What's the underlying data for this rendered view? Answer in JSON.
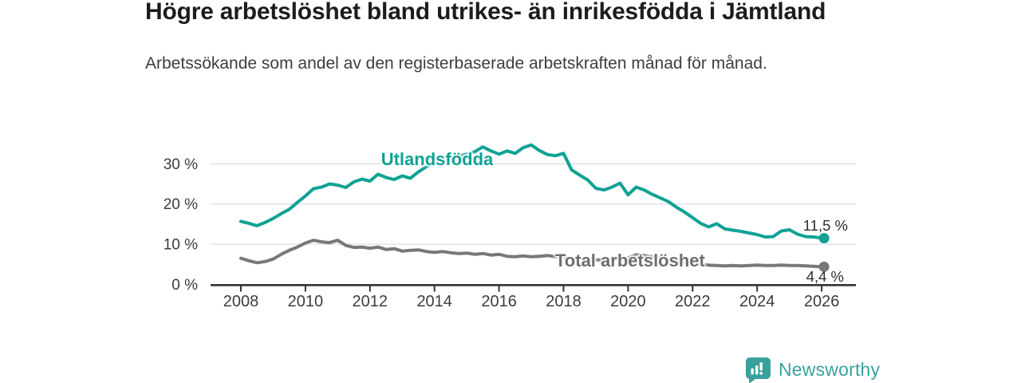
{
  "header": {
    "title": "Högre arbetslöshet bland utrikes- än inrikesfödda i Jämtland",
    "subtitle": "Arbetssökande som andel av den registerbaserade arbetskraften månad för månad."
  },
  "chart_data": {
    "type": "line",
    "title": "Högre arbetslöshet bland utrikes- än inrikesfödda i Jämtland",
    "subtitle": "Arbetssökande som andel av den registerbaserade arbetskraften månad för månad.",
    "xlabel": "",
    "ylabel": "",
    "x_unit": "year (quarterly samples)",
    "x_start": 2008,
    "x_step": 0.25,
    "xlim": [
      2007.1,
      2027.1
    ],
    "ylim": [
      0,
      36
    ],
    "grid": "horizontal",
    "legend_position": "inline-labels",
    "y_ticks": [
      {
        "value": 0,
        "label": "0 %"
      },
      {
        "value": 10,
        "label": "10 %"
      },
      {
        "value": 20,
        "label": "20 %"
      },
      {
        "value": 30,
        "label": "30 %"
      }
    ],
    "x_ticks": [
      {
        "value": 2008,
        "label": "2008"
      },
      {
        "value": 2010,
        "label": "2010"
      },
      {
        "value": 2012,
        "label": "2012"
      },
      {
        "value": 2014,
        "label": "2014"
      },
      {
        "value": 2016,
        "label": "2016"
      },
      {
        "value": 2018,
        "label": "2018"
      },
      {
        "value": 2020,
        "label": "2020"
      },
      {
        "value": 2022,
        "label": "2022"
      },
      {
        "value": 2024,
        "label": "2024"
      },
      {
        "value": 2026,
        "label": "2026"
      }
    ],
    "series": [
      {
        "name": "Utlandsfödda",
        "color": "#0fa295",
        "end_label": "11,5 %",
        "end_value": 11.5,
        "values": [
          15.7,
          15.2,
          14.6,
          15.4,
          16.4,
          17.6,
          18.7,
          20.4,
          22.0,
          23.8,
          24.2,
          25.0,
          24.7,
          24.1,
          25.5,
          26.2,
          25.7,
          27.4,
          26.6,
          26.1,
          27.0,
          26.4,
          28.0,
          29.3,
          30.1,
          30.7,
          31.3,
          31.9,
          32.4,
          33.0,
          34.2,
          33.2,
          32.4,
          33.2,
          32.6,
          34.0,
          34.7,
          33.3,
          32.3,
          32.0,
          32.6,
          28.5,
          27.2,
          26.0,
          23.9,
          23.5,
          24.2,
          25.2,
          22.3,
          24.2,
          23.5,
          22.4,
          21.5,
          20.6,
          19.2,
          18.0,
          16.6,
          15.2,
          14.3,
          15.1,
          13.8,
          13.5,
          13.2,
          12.8,
          12.4,
          11.8,
          11.9,
          13.3,
          13.6,
          12.5,
          11.9,
          11.8,
          11.5
        ]
      },
      {
        "name": "Total arbetslöshet",
        "color": "#77787c",
        "end_label": "4,4 %",
        "end_value": 4.4,
        "values": [
          6.5,
          5.9,
          5.4,
          5.7,
          6.3,
          7.5,
          8.5,
          9.3,
          10.3,
          11.0,
          10.6,
          10.4,
          11.0,
          9.7,
          9.2,
          9.3,
          9.0,
          9.3,
          8.7,
          8.9,
          8.3,
          8.5,
          8.6,
          8.2,
          8.0,
          8.2,
          7.9,
          7.7,
          7.8,
          7.5,
          7.7,
          7.3,
          7.5,
          7.0,
          6.9,
          7.1,
          6.9,
          7.0,
          7.2,
          6.9,
          6.7,
          6.5,
          6.4,
          6.2,
          6.1,
          6.1,
          6.2,
          6.3,
          6.6,
          7.4,
          7.2,
          6.9,
          6.6,
          6.3,
          5.9,
          5.5,
          5.2,
          5.0,
          4.8,
          4.7,
          4.6,
          4.7,
          4.6,
          4.7,
          4.8,
          4.7,
          4.7,
          4.8,
          4.7,
          4.7,
          4.6,
          4.5,
          4.4
        ]
      }
    ],
    "style": {
      "grid_color": "#e2e0e0",
      "axis_color": "#333333",
      "tick_label_color": "#3c3c3c",
      "value_label_color": "#2e2e2e"
    }
  },
  "footer": {
    "brand": "Newsworthy",
    "brand_color": "#3ba19e"
  }
}
